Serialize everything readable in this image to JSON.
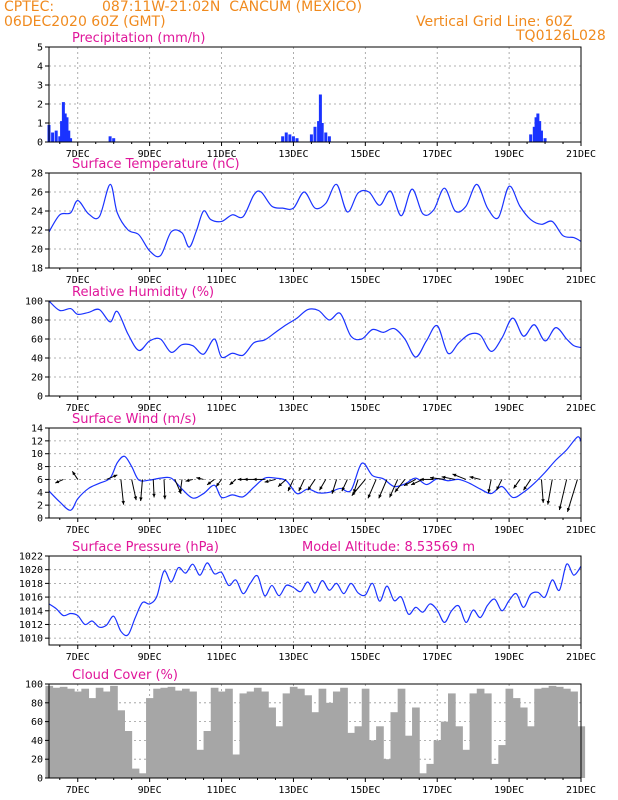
{
  "header": {
    "source": "CPTEC:",
    "location": "087:11W-21:02N  CANCUM (MEXICO)",
    "run": "06DEC2020 60Z (GMT)",
    "grid_note": "Vertical Grid Line: 60Z",
    "model_code": "TQ0126L028",
    "color": "#f08a1e"
  },
  "colors": {
    "title": "#e0169a",
    "series": "#1a33ff",
    "cloud": "#a6a6a6",
    "wind_arrow": "#000000"
  },
  "x_axis": {
    "labels": [
      "7DEC",
      "9DEC",
      "11DEC",
      "13DEC",
      "15DEC",
      "17DEC",
      "19DEC",
      "21DEC"
    ],
    "range_days": [
      6.2,
      21.0
    ]
  },
  "chart_data": [
    {
      "type": "bar",
      "title": "Precipitation (mm/h)",
      "ylim": [
        0,
        5
      ],
      "yticks": [
        "0",
        "1",
        "2",
        "3",
        "4",
        "5"
      ],
      "grid": true,
      "x_days": [
        6.2,
        6.3,
        6.4,
        6.5,
        6.55,
        6.6,
        6.65,
        6.7,
        6.75,
        6.8,
        7.9,
        8.0,
        12.7,
        12.8,
        12.9,
        13.0,
        13.1,
        13.5,
        13.6,
        13.7,
        13.75,
        13.8,
        13.9,
        14.0,
        19.6,
        19.7,
        19.75,
        19.8,
        19.85,
        19.9,
        20.0
      ],
      "values": [
        0.9,
        0.5,
        0.6,
        0.3,
        1.1,
        2.1,
        1.5,
        1.3,
        0.6,
        0.2,
        0.3,
        0.2,
        0.3,
        0.5,
        0.4,
        0.3,
        0.2,
        0.4,
        0.8,
        1.1,
        2.5,
        1.0,
        0.5,
        0.3,
        0.4,
        0.8,
        1.3,
        1.5,
        1.1,
        0.6,
        0.2
      ]
    },
    {
      "type": "line",
      "title": "Surface Temperature (nC)",
      "ylim": [
        18,
        28
      ],
      "yticks": [
        "18",
        "20",
        "22",
        "24",
        "26",
        "28"
      ],
      "grid": true,
      "x_days": [
        6.2,
        6.5,
        6.8,
        7.0,
        7.3,
        7.6,
        7.9,
        8.1,
        8.4,
        8.7,
        9.0,
        9.3,
        9.6,
        9.9,
        10.1,
        10.3,
        10.5,
        10.7,
        11.0,
        11.3,
        11.6,
        11.9,
        12.1,
        12.4,
        12.7,
        13.0,
        13.3,
        13.6,
        13.9,
        14.2,
        14.5,
        14.8,
        15.1,
        15.4,
        15.7,
        16.0,
        16.3,
        16.6,
        16.9,
        17.2,
        17.5,
        17.8,
        18.1,
        18.4,
        18.7,
        19.0,
        19.3,
        19.6,
        19.9,
        20.2,
        20.5,
        20.8,
        21.0
      ],
      "values": [
        21.8,
        23.6,
        23.8,
        25.1,
        23.7,
        23.4,
        26.8,
        23.8,
        22.0,
        21.5,
        19.8,
        19.3,
        21.8,
        21.7,
        20.2,
        21.9,
        24.0,
        23.1,
        22.9,
        23.6,
        23.4,
        25.7,
        26.0,
        24.5,
        24.3,
        24.3,
        26.0,
        24.3,
        24.8,
        26.8,
        23.9,
        25.9,
        26.0,
        24.6,
        26.1,
        23.5,
        26.3,
        23.7,
        24.1,
        26.4,
        24.0,
        24.5,
        26.8,
        24.3,
        23.3,
        26.6,
        24.5,
        23.1,
        22.6,
        22.9,
        21.4,
        21.2,
        20.8
      ]
    },
    {
      "type": "line",
      "title": "Relative Humidity (%)",
      "ylim": [
        0,
        100
      ],
      "yticks": [
        "0",
        "20",
        "40",
        "60",
        "80",
        "100"
      ],
      "grid": true,
      "x_days": [
        6.2,
        6.5,
        6.8,
        7.0,
        7.3,
        7.6,
        7.9,
        8.1,
        8.4,
        8.7,
        9.0,
        9.3,
        9.6,
        9.9,
        10.2,
        10.5,
        10.8,
        11.0,
        11.3,
        11.6,
        11.9,
        12.2,
        12.5,
        12.8,
        13.1,
        13.4,
        13.7,
        14.0,
        14.3,
        14.6,
        14.9,
        15.2,
        15.5,
        15.8,
        16.1,
        16.4,
        16.7,
        17.0,
        17.3,
        17.6,
        17.9,
        18.2,
        18.5,
        18.8,
        19.1,
        19.4,
        19.7,
        20.0,
        20.3,
        20.6,
        20.8,
        21.0
      ],
      "values": [
        100,
        90,
        92,
        86,
        88,
        91,
        78,
        89,
        65,
        48,
        58,
        60,
        46,
        54,
        53,
        44,
        60,
        41,
        45,
        43,
        56,
        59,
        67,
        75,
        82,
        91,
        90,
        80,
        87,
        63,
        60,
        70,
        67,
        71,
        60,
        41,
        58,
        74,
        45,
        56,
        65,
        64,
        47,
        61,
        82,
        63,
        75,
        58,
        72,
        60,
        53,
        51
      ]
    },
    {
      "type": "line",
      "title": "Surface Wind (m/s)",
      "ylim": [
        0,
        14
      ],
      "yticks": [
        "0",
        "2",
        "4",
        "6",
        "8",
        "10",
        "12",
        "14"
      ],
      "grid": true,
      "x_days": [
        6.2,
        6.5,
        6.8,
        7.0,
        7.3,
        7.6,
        7.9,
        8.1,
        8.3,
        8.5,
        8.7,
        9.0,
        9.3,
        9.6,
        9.9,
        10.2,
        10.5,
        10.8,
        11.0,
        11.3,
        11.6,
        11.9,
        12.2,
        12.5,
        12.8,
        13.1,
        13.4,
        13.7,
        14.0,
        14.3,
        14.6,
        14.9,
        15.2,
        15.5,
        15.8,
        16.1,
        16.4,
        16.7,
        17.0,
        17.3,
        17.6,
        17.9,
        18.2,
        18.5,
        18.8,
        19.1,
        19.4,
        19.7,
        20.0,
        20.3,
        20.6,
        20.9,
        21.0
      ],
      "values": [
        4.2,
        2.5,
        1.2,
        3.0,
        4.6,
        5.4,
        6.2,
        8.6,
        9.6,
        8.0,
        5.9,
        5.9,
        6.2,
        6.2,
        4.5,
        3.1,
        3.8,
        5.1,
        3.2,
        3.6,
        3.3,
        4.8,
        6.2,
        6.2,
        5.8,
        3.8,
        4.5,
        3.9,
        4.0,
        4.6,
        4.3,
        8.5,
        6.6,
        6.1,
        4.9,
        5.3,
        6.2,
        5.2,
        6.1,
        5.8,
        6.0,
        5.4,
        4.5,
        3.8,
        4.9,
        3.2,
        4.0,
        5.4,
        7.1,
        9.0,
        10.6,
        12.6,
        11.9
      ],
      "arrows": [
        {
          "day": 6.6,
          "u": -0.9,
          "v": -0.4
        },
        {
          "day": 7.0,
          "u": -0.6,
          "v": 0.9
        },
        {
          "day": 7.8,
          "u": 1.2,
          "v": 0.5
        },
        {
          "day": 8.2,
          "u": 0.3,
          "v": -2.8
        },
        {
          "day": 8.5,
          "u": 0.5,
          "v": -2.3
        },
        {
          "day": 8.8,
          "u": -0.2,
          "v": -2.4
        },
        {
          "day": 9.1,
          "u": 0.1,
          "v": -2.0
        },
        {
          "day": 9.4,
          "u": 0.1,
          "v": -2.2
        },
        {
          "day": 9.7,
          "u": 0.7,
          "v": -1.6
        },
        {
          "day": 9.9,
          "u": -0.2,
          "v": -1.5
        },
        {
          "day": 10.2,
          "u": -0.8,
          "v": -0.2
        },
        {
          "day": 10.5,
          "u": -0.8,
          "v": 0.2
        },
        {
          "day": 10.8,
          "u": -0.8,
          "v": -0.6
        },
        {
          "day": 11.0,
          "u": -0.6,
          "v": -0.8
        },
        {
          "day": 11.4,
          "u": -0.7,
          "v": -0.6
        },
        {
          "day": 11.7,
          "u": -1.0,
          "v": 0.0
        },
        {
          "day": 11.9,
          "u": -1.1,
          "v": 0.0
        },
        {
          "day": 12.2,
          "u": -1.3,
          "v": 0.0
        },
        {
          "day": 12.5,
          "u": -1.2,
          "v": -0.3
        },
        {
          "day": 12.8,
          "u": -0.9,
          "v": -0.8
        },
        {
          "day": 13.0,
          "u": -0.6,
          "v": -1.3
        },
        {
          "day": 13.3,
          "u": -0.6,
          "v": -1.3
        },
        {
          "day": 13.6,
          "u": -0.8,
          "v": -1.2
        },
        {
          "day": 13.9,
          "u": -0.7,
          "v": -1.2
        },
        {
          "day": 14.2,
          "u": -0.5,
          "v": -1.6
        },
        {
          "day": 14.5,
          "u": -0.6,
          "v": -1.3
        },
        {
          "day": 14.8,
          "u": -0.5,
          "v": -1.5
        },
        {
          "day": 15.0,
          "u": -1.5,
          "v": -1.8
        },
        {
          "day": 15.3,
          "u": -0.9,
          "v": -2.1
        },
        {
          "day": 15.6,
          "u": -0.9,
          "v": -2.1
        },
        {
          "day": 15.9,
          "u": -0.9,
          "v": -2.0
        },
        {
          "day": 16.1,
          "u": -1.1,
          "v": -1.4
        },
        {
          "day": 16.4,
          "u": -1.3,
          "v": -0.7
        },
        {
          "day": 16.6,
          "u": -1.3,
          "v": -0.6
        },
        {
          "day": 16.9,
          "u": -1.5,
          "v": 0.0
        },
        {
          "day": 17.2,
          "u": -1.6,
          "v": 0.2
        },
        {
          "day": 17.5,
          "u": -1.5,
          "v": 0.3
        },
        {
          "day": 17.8,
          "u": -1.5,
          "v": 0.6
        },
        {
          "day": 18.2,
          "u": -1.2,
          "v": 0.3
        },
        {
          "day": 18.5,
          "u": -0.3,
          "v": -1.5
        },
        {
          "day": 18.8,
          "u": -0.6,
          "v": -1.2
        },
        {
          "day": 19.3,
          "u": -0.7,
          "v": -1.0
        },
        {
          "day": 19.6,
          "u": -0.8,
          "v": -1.2
        },
        {
          "day": 19.9,
          "u": 0.2,
          "v": -2.6
        },
        {
          "day": 20.2,
          "u": -0.5,
          "v": -2.8
        },
        {
          "day": 20.6,
          "u": -0.8,
          "v": -3.4
        },
        {
          "day": 20.9,
          "u": -1.1,
          "v": -3.6
        }
      ]
    },
    {
      "type": "line",
      "title": "Surface Pressure (hPa)",
      "subtitle": "Model Altitude: 8.53569 m",
      "ylim": [
        1009,
        1022
      ],
      "yticks": [
        "1010",
        "1012",
        "1014",
        "1016",
        "1018",
        "1020",
        "1022"
      ],
      "grid": true,
      "x_days": [
        6.2,
        6.4,
        6.6,
        6.8,
        7.0,
        7.2,
        7.4,
        7.6,
        7.8,
        8.0,
        8.2,
        8.4,
        8.6,
        8.8,
        9.0,
        9.2,
        9.4,
        9.6,
        9.8,
        10.0,
        10.2,
        10.4,
        10.6,
        10.8,
        11.0,
        11.2,
        11.4,
        11.6,
        11.8,
        12.0,
        12.2,
        12.4,
        12.6,
        12.8,
        13.0,
        13.2,
        13.4,
        13.6,
        13.8,
        14.0,
        14.2,
        14.4,
        14.6,
        14.8,
        15.0,
        15.2,
        15.4,
        15.6,
        15.8,
        16.0,
        16.2,
        16.4,
        16.6,
        16.8,
        17.0,
        17.2,
        17.4,
        17.6,
        17.8,
        18.0,
        18.2,
        18.4,
        18.6,
        18.8,
        19.0,
        19.2,
        19.4,
        19.6,
        19.8,
        20.0,
        20.2,
        20.4,
        20.6,
        20.8,
        21.0
      ],
      "values": [
        1015.0,
        1014.3,
        1013.3,
        1013.6,
        1013.3,
        1012.0,
        1012.5,
        1011.6,
        1011.9,
        1013.2,
        1011.0,
        1010.5,
        1013.0,
        1015.2,
        1015.0,
        1016.1,
        1019.8,
        1018.2,
        1020.3,
        1019.5,
        1020.8,
        1019.2,
        1021.0,
        1019.4,
        1019.6,
        1017.7,
        1018.5,
        1016.5,
        1018.0,
        1019.1,
        1016.2,
        1017.7,
        1016.2,
        1017.7,
        1017.4,
        1016.8,
        1018.2,
        1016.6,
        1018.4,
        1017.0,
        1018.0,
        1016.5,
        1018.0,
        1016.6,
        1016.3,
        1018.0,
        1015.4,
        1017.6,
        1015.5,
        1016.0,
        1013.5,
        1014.5,
        1013.8,
        1015.0,
        1014.1,
        1012.3,
        1014.0,
        1014.7,
        1012.3,
        1014.1,
        1013.0,
        1014.8,
        1015.7,
        1014.0,
        1015.5,
        1016.5,
        1014.5,
        1016.4,
        1016.7,
        1016.0,
        1018.5,
        1017.0,
        1020.8,
        1019.2,
        1020.5
      ]
    },
    {
      "type": "bar",
      "title": "Cloud Cover (%)",
      "ylim": [
        0,
        100
      ],
      "yticks": [
        "0",
        "20",
        "40",
        "60",
        "80",
        "100"
      ],
      "grid": true,
      "x_days": [
        6.2,
        6.4,
        6.6,
        6.8,
        7.0,
        7.2,
        7.4,
        7.6,
        7.8,
        8.0,
        8.2,
        8.4,
        8.6,
        8.8,
        9.0,
        9.2,
        9.4,
        9.6,
        9.8,
        10.0,
        10.2,
        10.4,
        10.6,
        10.8,
        11.0,
        11.2,
        11.4,
        11.6,
        11.8,
        12.0,
        12.2,
        12.4,
        12.6,
        12.8,
        13.0,
        13.2,
        13.4,
        13.6,
        13.8,
        14.0,
        14.2,
        14.4,
        14.6,
        14.8,
        15.0,
        15.2,
        15.4,
        15.6,
        15.8,
        16.0,
        16.2,
        16.4,
        16.6,
        16.8,
        17.0,
        17.2,
        17.4,
        17.6,
        17.8,
        18.0,
        18.2,
        18.4,
        18.6,
        18.8,
        19.0,
        19.2,
        19.4,
        19.6,
        19.8,
        20.0,
        20.2,
        20.4,
        20.6,
        20.8,
        21.0
      ],
      "values": [
        98,
        96,
        97,
        95,
        92,
        95,
        85,
        96,
        92,
        98,
        72,
        50,
        10,
        5,
        85,
        95,
        96,
        97,
        93,
        95,
        92,
        30,
        50,
        96,
        92,
        95,
        25,
        90,
        92,
        96,
        92,
        75,
        55,
        90,
        97,
        95,
        88,
        70,
        95,
        80,
        92,
        96,
        48,
        55,
        95,
        40,
        55,
        20,
        70,
        95,
        45,
        75,
        5,
        15,
        40,
        60,
        90,
        55,
        30,
        90,
        95,
        90,
        15,
        35,
        95,
        85,
        75,
        55,
        95,
        96,
        98,
        97,
        95,
        92,
        55
      ]
    }
  ]
}
